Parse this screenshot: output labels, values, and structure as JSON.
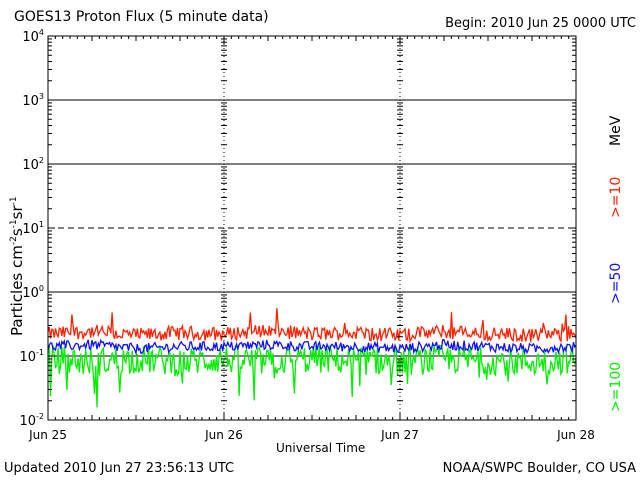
{
  "header": {
    "title": "GOES13 Proton Flux (5 minute data)",
    "begin": "Begin: 2010 Jun 25 0000 UTC"
  },
  "footer": {
    "updated": "Updated 2010 Jun 27 23:56:13 UTC",
    "credit": "NOAA/SWPC Boulder, CO USA"
  },
  "colors": {
    "ge10": "#ff2000",
    "ge50": "#1010ff",
    "ge100": "#00ee00",
    "axis": "#000000"
  },
  "chart_data": {
    "type": "line",
    "title": "GOES13 Proton Flux (5 minute data)",
    "xlabel": "Universal Time",
    "ylabel": "Particles cm-2 s-1 sr-1",
    "yscale": "log",
    "ylim": [
      0.01,
      10000
    ],
    "yticks": [
      "10-2",
      "10-1",
      "100",
      "101",
      "102",
      "103",
      "104"
    ],
    "xticks": [
      "Jun 25",
      "Jun 26",
      "Jun 27",
      "Jun 28"
    ],
    "xlim": [
      "2010-06-25 00:00",
      "2010-06-28 00:00"
    ],
    "grid": true,
    "legend_position": "right",
    "legend_unit": "MeV",
    "series": [
      {
        "name": ">=10",
        "color": "#ff2000",
        "x": [
          "2010-06-25 00:00",
          "2010-06-25 06:00",
          "2010-06-25 12:00",
          "2010-06-25 18:00",
          "2010-06-26 00:00",
          "2010-06-26 06:00",
          "2010-06-26 12:00",
          "2010-06-26 18:00",
          "2010-06-27 00:00",
          "2010-06-27 06:00",
          "2010-06-27 12:00",
          "2010-06-27 18:00",
          "2010-06-28 00:00"
        ],
        "values": [
          0.22,
          0.24,
          0.21,
          0.23,
          0.22,
          0.25,
          0.22,
          0.23,
          0.21,
          0.24,
          0.22,
          0.21,
          0.22
        ]
      },
      {
        "name": ">=50",
        "color": "#1010ff",
        "x": [
          "2010-06-25 00:00",
          "2010-06-25 06:00",
          "2010-06-25 12:00",
          "2010-06-25 18:00",
          "2010-06-26 00:00",
          "2010-06-26 06:00",
          "2010-06-26 12:00",
          "2010-06-26 18:00",
          "2010-06-27 00:00",
          "2010-06-27 06:00",
          "2010-06-27 12:00",
          "2010-06-27 18:00",
          "2010-06-28 00:00"
        ],
        "values": [
          0.14,
          0.15,
          0.13,
          0.14,
          0.14,
          0.15,
          0.14,
          0.14,
          0.13,
          0.15,
          0.14,
          0.13,
          0.14
        ]
      },
      {
        "name": ">=100",
        "color": "#00ee00",
        "x": [
          "2010-06-25 00:00",
          "2010-06-25 06:00",
          "2010-06-25 12:00",
          "2010-06-25 18:00",
          "2010-06-26 00:00",
          "2010-06-26 06:00",
          "2010-06-26 12:00",
          "2010-06-26 18:00",
          "2010-06-27 00:00",
          "2010-06-27 06:00",
          "2010-06-27 12:00",
          "2010-06-27 18:00",
          "2010-06-28 00:00"
        ],
        "values": [
          0.09,
          0.08,
          0.09,
          0.08,
          0.09,
          0.08,
          0.09,
          0.085,
          0.08,
          0.09,
          0.085,
          0.08,
          0.09
        ]
      }
    ]
  }
}
